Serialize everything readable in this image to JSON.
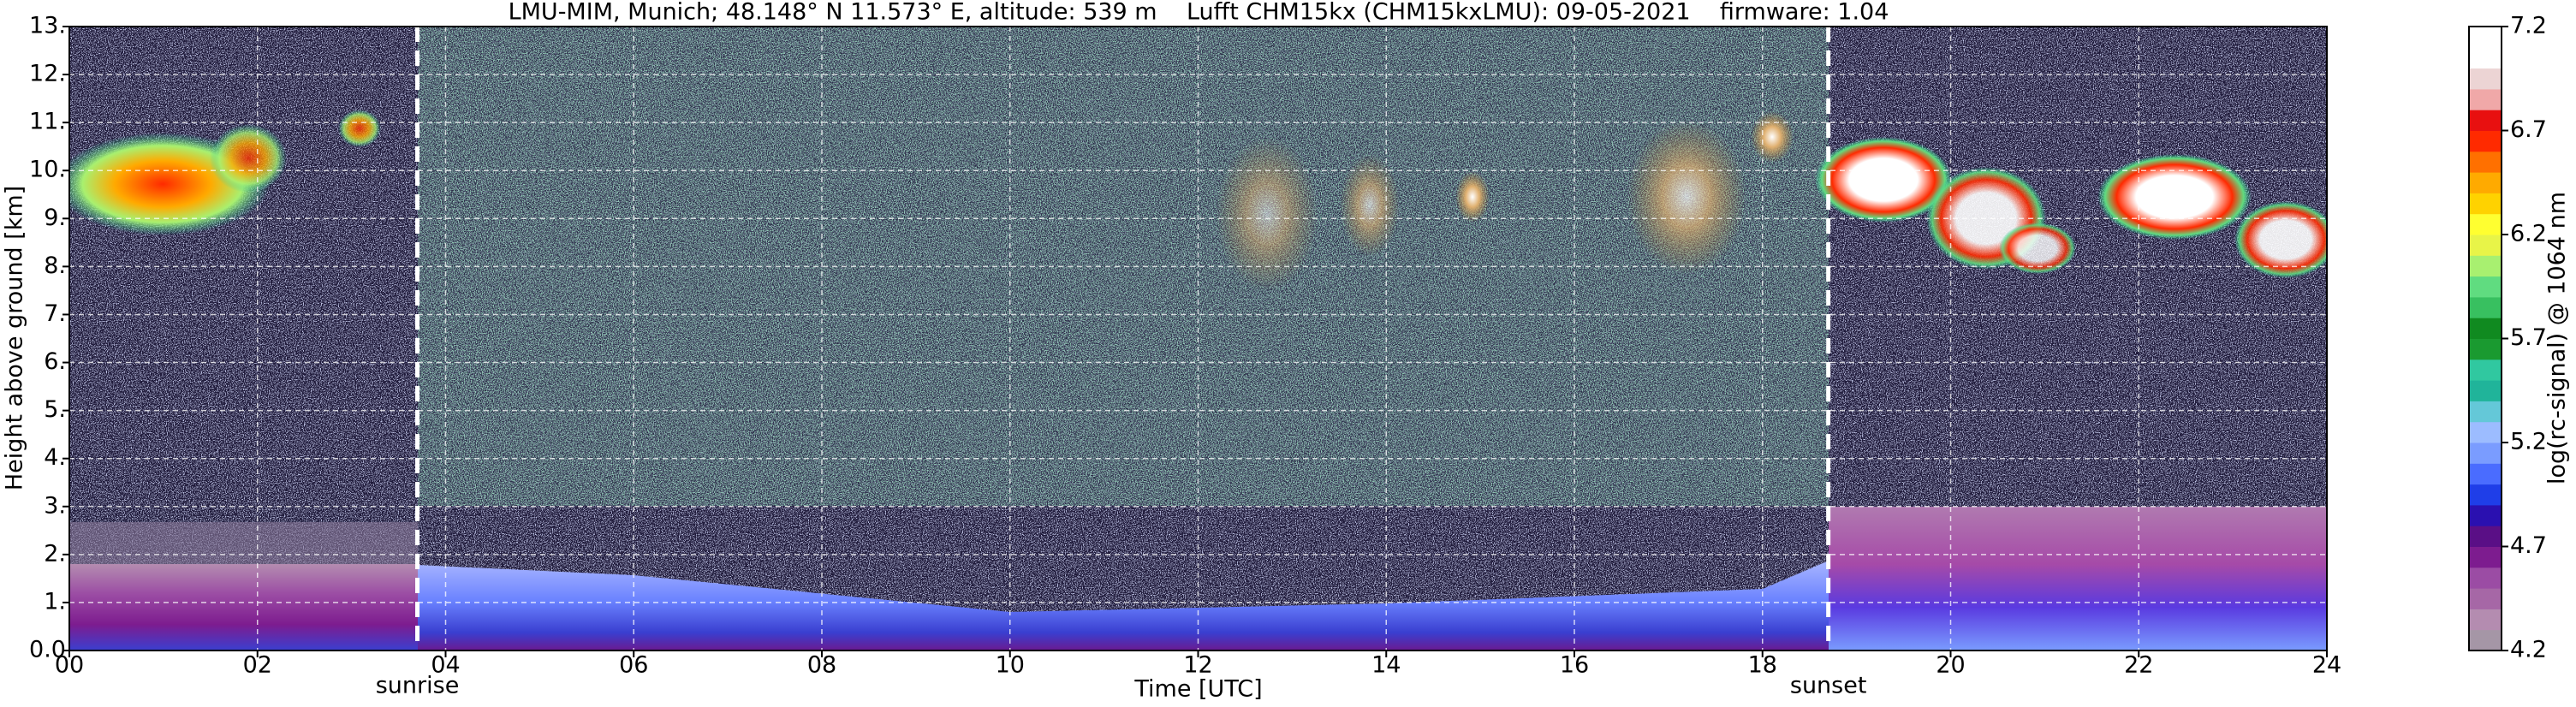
{
  "chart_data": {
    "type": "heatmap",
    "title": "LMU-MIM, Munich; 48.148° N 11.573° E, altitude: 539 m    Lufft CHM15kx (CHM15kxLMU): 09-05-2021    firmware: 1.04",
    "x_label": "Time [UTC]",
    "y_label": "Height above ground [km]",
    "xlim": [
      0,
      24
    ],
    "xticks": [
      {
        "value": 0,
        "label": "00"
      },
      {
        "value": 2,
        "label": "02"
      },
      {
        "value": 4,
        "label": "04"
      },
      {
        "value": 6,
        "label": "06"
      },
      {
        "value": 8,
        "label": "08"
      },
      10,
      12,
      14,
      16,
      18,
      20,
      22,
      24
    ],
    "ylim": [
      0,
      13
    ],
    "yticks": [
      {
        "value": 0,
        "label": "0.0"
      },
      {
        "value": 1,
        "label": "1."
      },
      {
        "value": 2,
        "label": "2."
      },
      {
        "value": 3,
        "label": "3."
      },
      {
        "value": 4,
        "label": "4."
      },
      {
        "value": 5,
        "label": "5."
      },
      {
        "value": 6,
        "label": "6."
      },
      {
        "value": 7,
        "label": "7."
      },
      {
        "value": 8,
        "label": "8."
      },
      {
        "value": 9,
        "label": "9."
      },
      {
        "value": 10,
        "label": "10."
      },
      {
        "value": 11,
        "label": "11."
      },
      {
        "value": 12,
        "label": "12."
      },
      {
        "value": 13,
        "label": "13."
      }
    ],
    "grid": true,
    "annotations": [
      {
        "x": 3.7,
        "label": "sunrise"
      },
      {
        "x": 18.7,
        "label": "sunset"
      }
    ],
    "colorbar": {
      "label": "log(rc-signal) @ 1064 nm",
      "clim": [
        4.2,
        7.2
      ],
      "ticks": [
        4.2,
        4.7,
        5.2,
        5.7,
        6.2,
        6.7,
        7.2
      ],
      "colors": [
        "#a596a6",
        "#b48cb0",
        "#a667a6",
        "#9b4ca4",
        "#7d1c8f",
        "#5a0f86",
        "#2a10b0",
        "#1f3ee8",
        "#4a6cff",
        "#7a9cff",
        "#9cbcff",
        "#64c8d8",
        "#20b49a",
        "#30c8a0",
        "#1a9a30",
        "#108a20",
        "#38c060",
        "#60dc80",
        "#a8f070",
        "#e8f448",
        "#ffff30",
        "#ffd200",
        "#ffaa00",
        "#ff7000",
        "#ff2a00",
        "#e81010",
        "#f0a8a8",
        "#ecd4d4",
        "#ffffff",
        "#ffffff"
      ]
    }
  }
}
